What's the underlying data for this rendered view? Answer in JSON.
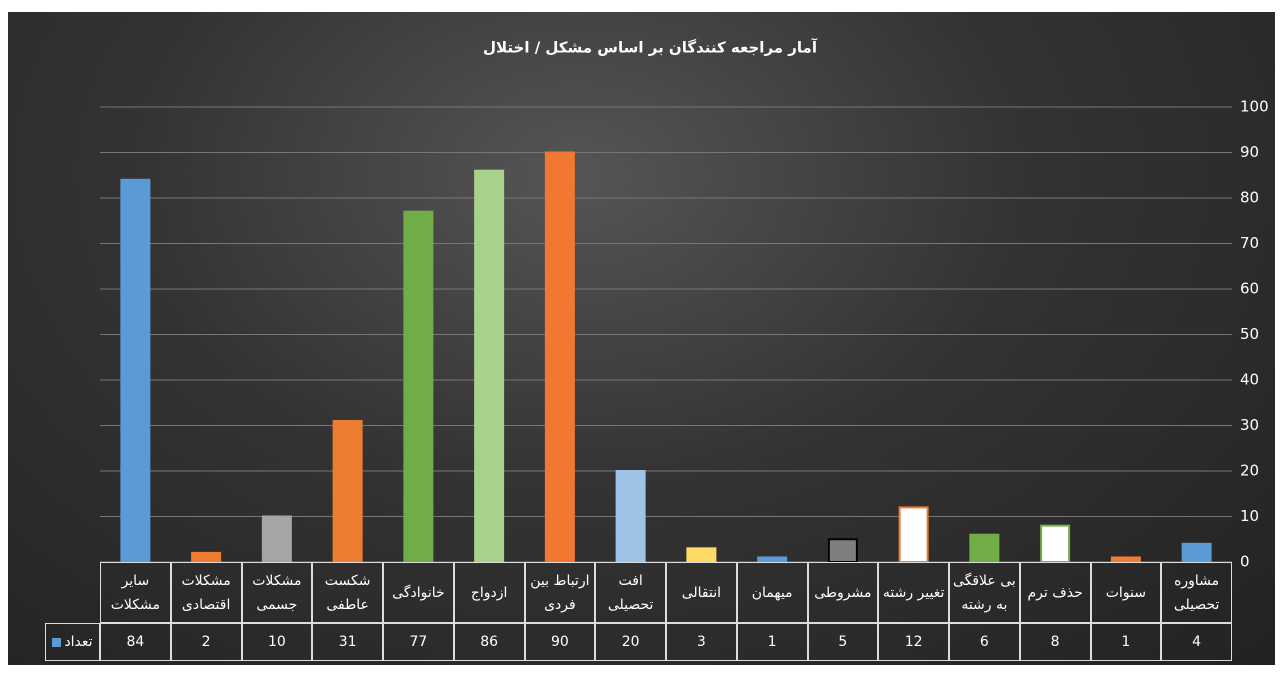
{
  "chart_data": {
    "type": "bar",
    "title": "آمار مراجعه کنندگان بر اساس مشکل / اختلال",
    "categories": [
      "سایر مشکلات",
      "مشکلات اقتصادی",
      "مشکلات جسمی",
      "شکست عاطفی",
      "خانوادگی",
      "ازدواج",
      "ارتباط بین فردی",
      "افت تحصیلی",
      "انتقالی",
      "میهمان",
      "مشروطی",
      "تغییر رشته",
      "بی علاقگی به رشته",
      "حذف ترم",
      "سنوات",
      "مشاوره تحصیلی"
    ],
    "series": [
      {
        "name": "تعداد",
        "color": "#5b9bd5",
        "values": [
          84,
          2,
          10,
          31,
          77,
          86,
          90,
          20,
          3,
          1,
          5,
          12,
          6,
          8,
          1,
          4
        ],
        "fills": [
          "#5b9bd5",
          "#ed7d31",
          "#a5a5a5",
          "#ed7d31",
          "#70ad47",
          "#a9d18e",
          "#f07830",
          "#9dc3e6",
          "#ffd966",
          "#5b9bd5",
          "#7f7f7f",
          "#ffffff",
          "#70ad47",
          "#ffffff",
          "#ed7d31",
          "#5b9bd5"
        ],
        "strokes": [
          "#5b9bd5",
          "#ed7d31",
          "#a5a5a5",
          "#ed7d31",
          "#70ad47",
          "#a9d18e",
          "#f07830",
          "#9dc3e6",
          "#ffd966",
          "#5b9bd5",
          "#000000",
          "#ed7d31",
          "#70ad47",
          "#70ad47",
          "#ed7d31",
          "#5b9bd5"
        ]
      }
    ],
    "ylim": [
      0,
      100
    ],
    "yticks": [
      0,
      10,
      20,
      30,
      40,
      50,
      60,
      70,
      80,
      90,
      100
    ],
    "grid": true
  }
}
